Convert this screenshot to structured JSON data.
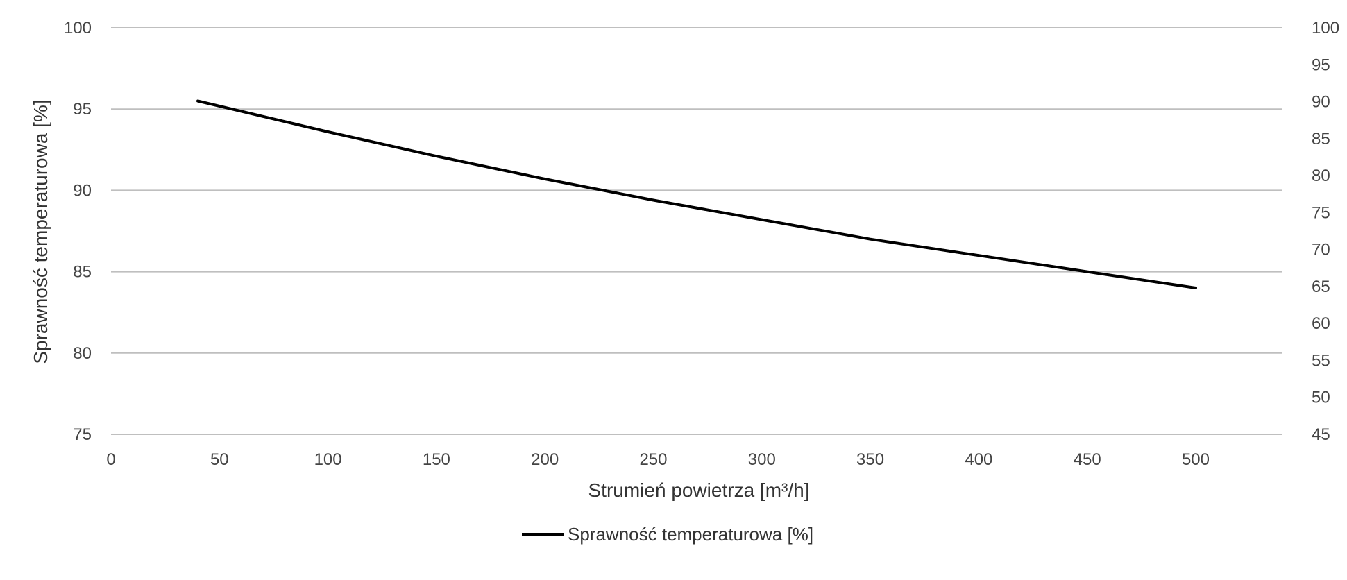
{
  "chart_data": {
    "type": "line",
    "xlabel": "Strumień powietrza [m³/h]",
    "ylabel": "Sprawność temperaturowa [%]",
    "xlim": [
      0,
      540
    ],
    "xticks": [
      0,
      50,
      100,
      150,
      200,
      250,
      300,
      350,
      400,
      450,
      500
    ],
    "ylim": [
      75,
      100
    ],
    "yticks": [
      75,
      80,
      85,
      90,
      95,
      100
    ],
    "y2lim": [
      45,
      100
    ],
    "y2ticks": [
      45,
      50,
      55,
      60,
      65,
      70,
      75,
      80,
      85,
      90,
      95,
      100
    ],
    "grid": true,
    "legend_position": "bottom",
    "series": [
      {
        "name": "Sprawność temperaturowa [%]",
        "color": "#000000",
        "axis": "left",
        "x": [
          40,
          100,
          150,
          200,
          250,
          300,
          350,
          400,
          450,
          500
        ],
        "y": [
          95.5,
          93.6,
          92.1,
          90.7,
          89.4,
          88.2,
          87.0,
          86.0,
          85.0,
          84.0
        ]
      }
    ]
  }
}
